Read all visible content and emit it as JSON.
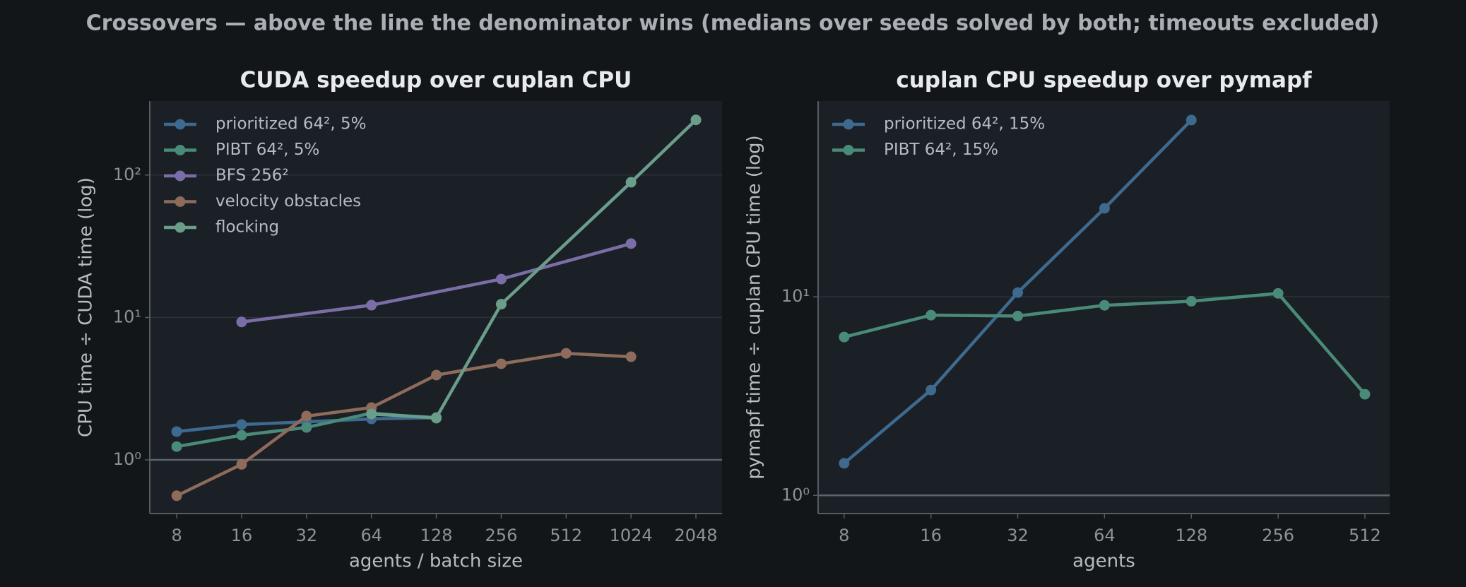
{
  "title": "Crossovers — above the line the denominator wins (medians over seeds solved by both; timeouts excluded)",
  "chart_data": [
    {
      "type": "line",
      "title": "CUDA speedup over cuplan CPU",
      "xlabel": "agents / batch size",
      "ylabel": "CPU time ÷ CUDA time (log)",
      "xscale": "log",
      "yscale": "log",
      "grid": true,
      "legend": "upper left",
      "reference_line": 1,
      "xlim": [
        6.0,
        2707
      ],
      "ylim": [
        0.42,
        331
      ],
      "xticks": [
        8,
        16,
        32,
        64,
        128,
        256,
        512,
        1024,
        2048
      ],
      "yticks": [
        {
          "value": 1,
          "label": "10⁰"
        },
        {
          "value": 10,
          "label": "10¹"
        },
        {
          "value": 100,
          "label": "10²"
        }
      ],
      "series": [
        {
          "name": "prioritized 64², 5%",
          "color": "#3d6a8e",
          "x": [
            8,
            16,
            32,
            64,
            128
          ],
          "values": [
            1.58,
            1.77,
            1.85,
            1.94,
            1.98
          ]
        },
        {
          "name": "PIBT 64², 5%",
          "color": "#4a8a78",
          "x": [
            8,
            16,
            32,
            64,
            128
          ],
          "values": [
            1.24,
            1.49,
            1.69,
            2.13,
            1.96
          ]
        },
        {
          "name": "BFS 256²",
          "color": "#7b6ea6",
          "x": [
            16,
            64,
            256,
            1024
          ],
          "values": [
            9.3,
            12.2,
            18.6,
            33
          ]
        },
        {
          "name": "velocity obstacles",
          "color": "#8e6b5b",
          "x": [
            8,
            16,
            32,
            64,
            128,
            256,
            512,
            1024
          ],
          "values": [
            0.56,
            0.93,
            2.03,
            2.33,
            3.94,
            4.73,
            5.6,
            5.3
          ]
        },
        {
          "name": "flocking",
          "color": "#6a9e8a",
          "x": [
            64,
            128,
            256,
            1024,
            2048
          ],
          "values": [
            2.1,
            1.98,
            12.4,
            89,
            244
          ]
        }
      ]
    },
    {
      "type": "line",
      "title": "cuplan CPU speedup over pymapf",
      "xlabel": "agents",
      "ylabel": "pymapf time ÷ cuplan CPU time (log)",
      "xscale": "log",
      "yscale": "log",
      "grid": true,
      "legend": "upper left",
      "reference_line": 1,
      "xlim": [
        6.5,
        624
      ],
      "ylim": [
        0.81,
        96.8
      ],
      "xticks": [
        8,
        16,
        32,
        64,
        128,
        256,
        512
      ],
      "yticks": [
        {
          "value": 1,
          "label": "10⁰"
        },
        {
          "value": 10,
          "label": "10¹"
        }
      ],
      "series": [
        {
          "name": "prioritized 64², 15%",
          "color": "#3d6a8e",
          "x": [
            8,
            16,
            32,
            64,
            128
          ],
          "values": [
            1.45,
            3.39,
            10.5,
            27.9,
            77.6
          ]
        },
        {
          "name": "PIBT 64², 15%",
          "color": "#4a8a78",
          "x": [
            8,
            16,
            32,
            64,
            128,
            256,
            512
          ],
          "values": [
            6.27,
            8.08,
            8.0,
            9.06,
            9.5,
            10.4,
            3.23
          ]
        }
      ]
    }
  ]
}
